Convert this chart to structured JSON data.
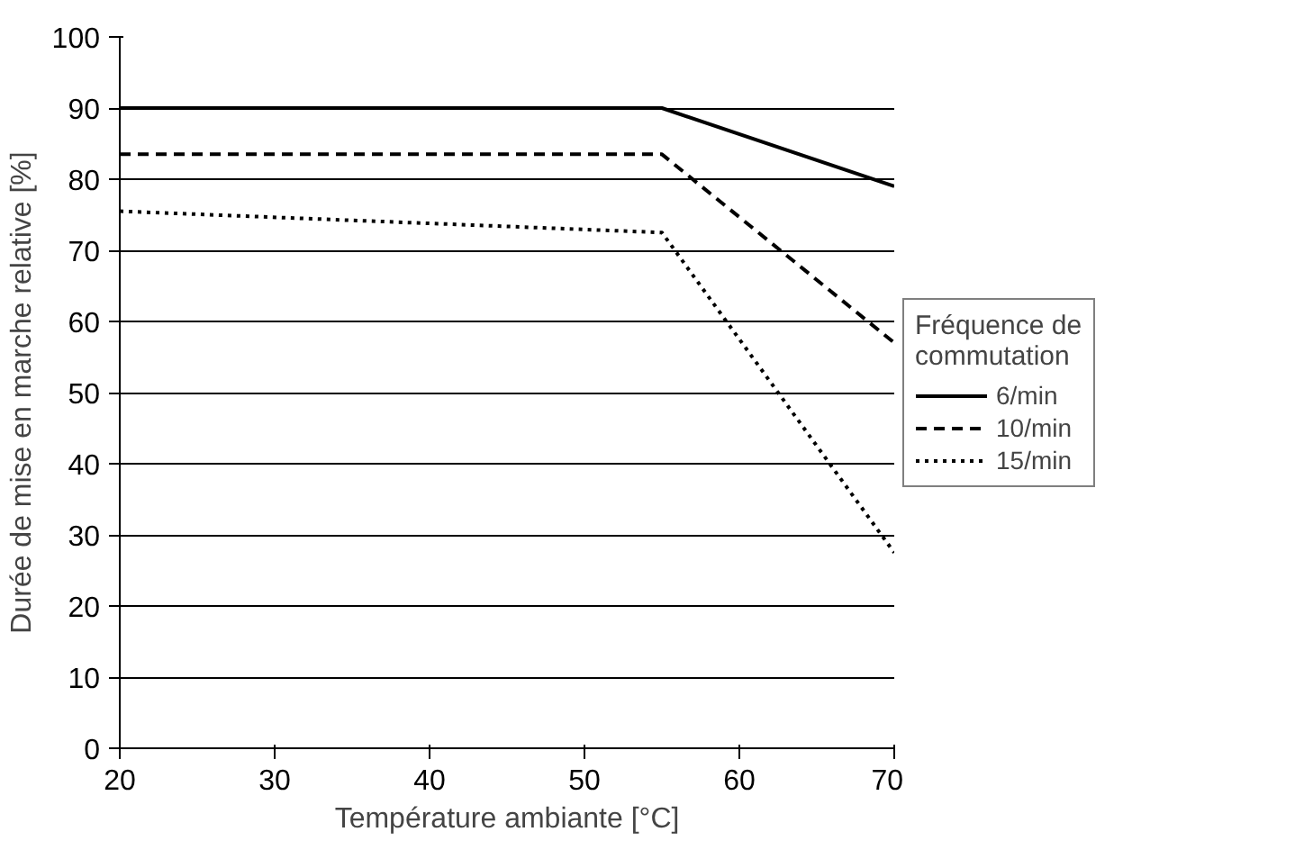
{
  "chart_data": {
    "type": "line",
    "xlabel": "Température ambiante [°C]",
    "ylabel": "Durée de mise en marche relative [%]",
    "legend_title": "Fréquence de commutation",
    "legend": "right",
    "grid": "y",
    "xlim": [
      20,
      70
    ],
    "xticks": [
      20,
      30,
      40,
      50,
      60,
      70
    ],
    "ylim": [
      0,
      100
    ],
    "yticks": [
      0,
      10,
      20,
      30,
      40,
      50,
      60,
      70,
      80,
      90,
      100
    ],
    "series": [
      {
        "name": "6/min",
        "color": "#000000",
        "line_style": "solid",
        "x": [
          20,
          55,
          70
        ],
        "values": [
          90,
          90,
          79
        ]
      },
      {
        "name": "10/min",
        "color": "#000000",
        "line_style": "dashed",
        "x": [
          20,
          55,
          70
        ],
        "values": [
          83.5,
          83.5,
          57
        ]
      },
      {
        "name": "15/min",
        "color": "#000000",
        "line_style": "dotted",
        "x": [
          20,
          55,
          70
        ],
        "values": [
          75.5,
          72.5,
          27.5
        ]
      }
    ]
  }
}
